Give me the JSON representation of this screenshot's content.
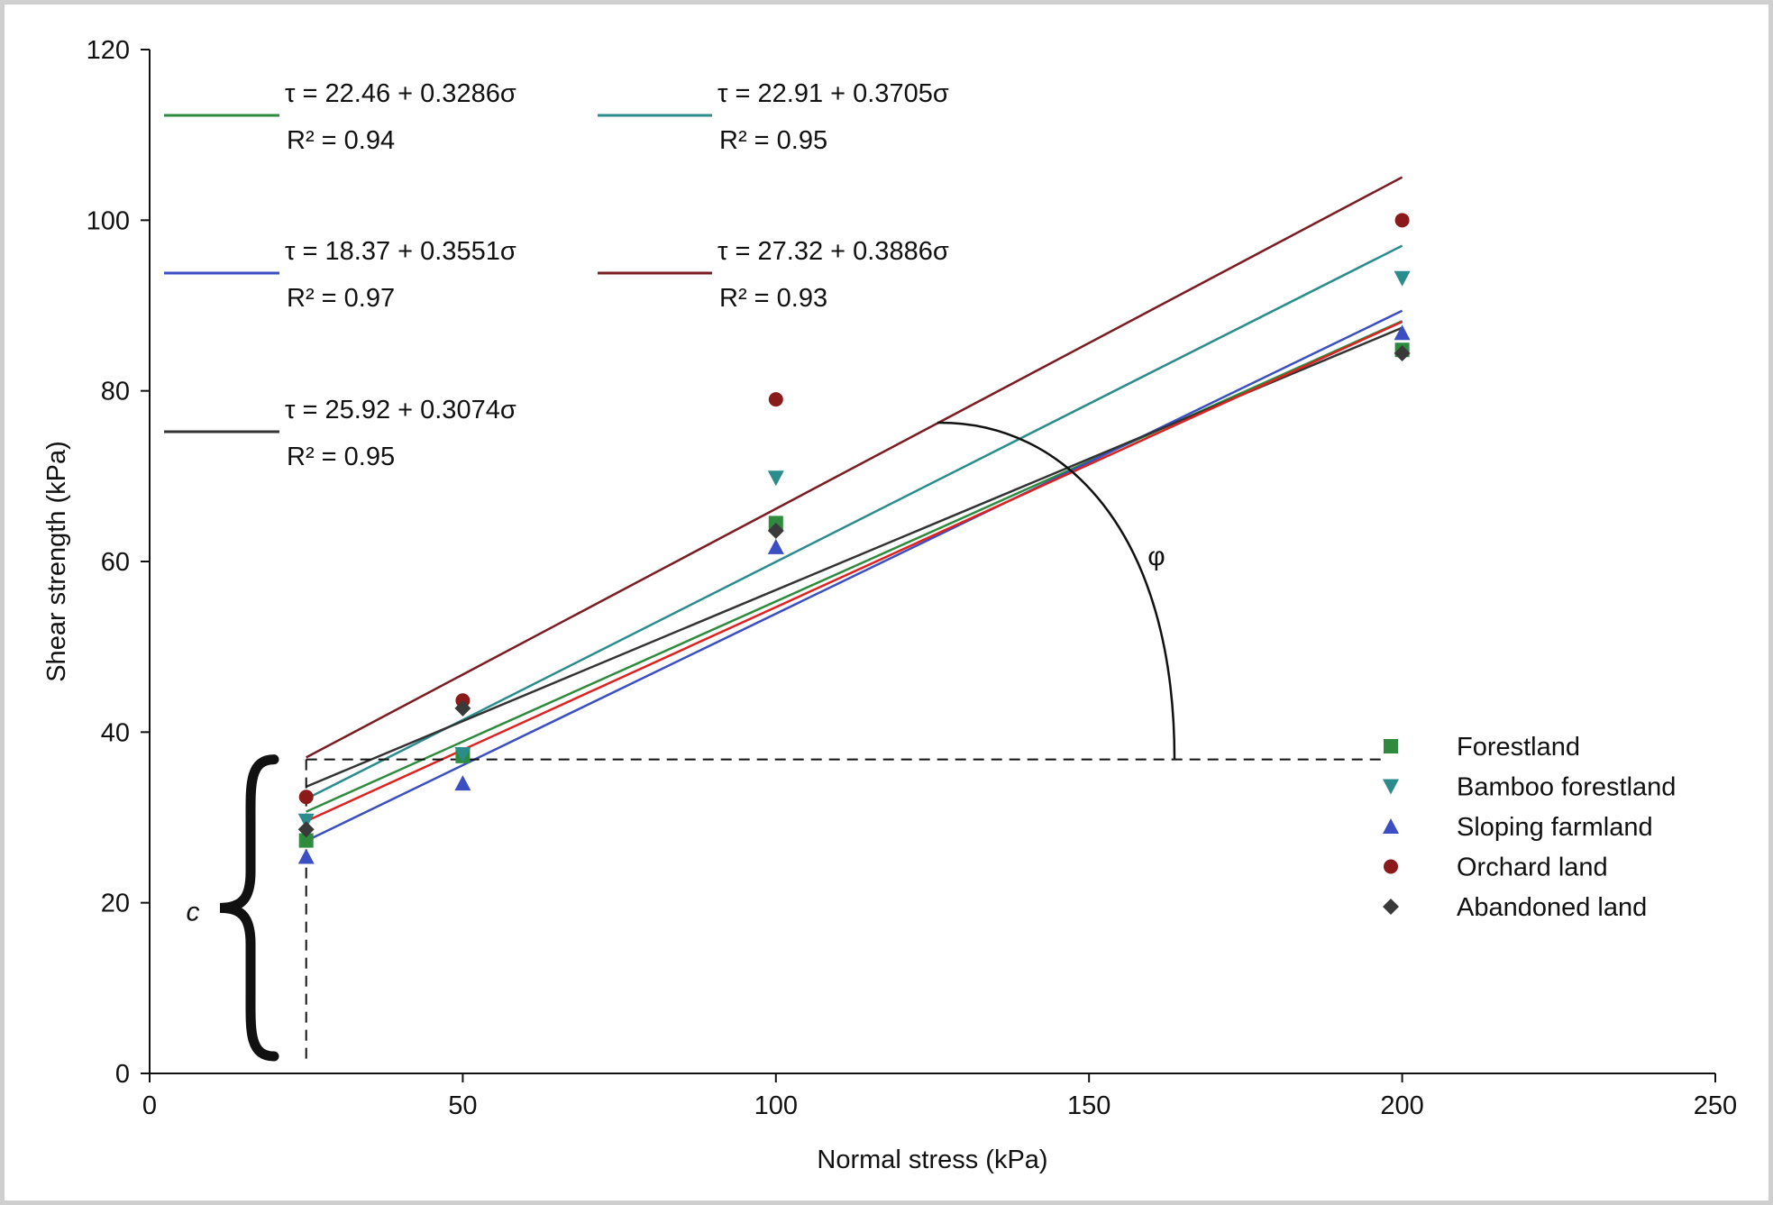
{
  "chart_data": {
    "type": "scatter",
    "xlabel": "Normal stress (kPa)",
    "ylabel": "Shear strength (kPa)",
    "xlim": [
      0,
      250
    ],
    "ylim": [
      0,
      120
    ],
    "xticks": [
      "0",
      "50",
      "100",
      "150",
      "200",
      "250"
    ],
    "yticks": [
      "0",
      "20",
      "40",
      "60",
      "80",
      "100",
      "120"
    ],
    "grid": false,
    "legend_position": "right",
    "series": [
      {
        "name": "Forestland",
        "marker": "square",
        "color": "#2e8b3e",
        "x": [
          25,
          50,
          100,
          200
        ],
        "y": [
          27.3,
          37.2,
          64.5,
          84.8
        ],
        "fit": {
          "equation": "τ = 22.46 + 0.3286σ",
          "r2": "R² = 0.94",
          "intercept": 22.46,
          "slope": 0.3286,
          "color": "#2e8b3e"
        }
      },
      {
        "name": "Bamboo forestland",
        "marker": "triangle-down",
        "color": "#2a8c8c",
        "x": [
          25,
          50,
          100,
          200
        ],
        "y": [
          29.6,
          37.4,
          69.8,
          93.2
        ],
        "fit": {
          "equation": "τ = 22.91 + 0.3705σ",
          "r2": "R² = 0.95",
          "intercept": 22.91,
          "slope": 0.3705,
          "color": "#2a8c8c"
        }
      },
      {
        "name": "Sloping farmland",
        "marker": "triangle-up",
        "color": "#3b4ec2",
        "x": [
          25,
          50,
          100,
          200
        ],
        "y": [
          25.4,
          34.0,
          61.7,
          86.8
        ],
        "fit": {
          "equation": "τ = 18.37 + 0.3551σ",
          "r2": "R² = 0.97",
          "intercept": 18.37,
          "slope": 0.3551,
          "color": "#3b4ec2"
        }
      },
      {
        "name": "Orchard land",
        "marker": "circle",
        "color": "#8b1a1a",
        "x": [
          25,
          50,
          100,
          200
        ],
        "y": [
          32.4,
          43.7,
          79.0,
          100.0
        ],
        "fit": {
          "equation": "τ = 27.32 + 0.3886σ",
          "r2": "R² = 0.93",
          "intercept": 27.32,
          "slope": 0.3886,
          "color": "#7a1c22"
        }
      },
      {
        "name": "Abandoned land",
        "marker": "diamond",
        "color": "#3a3a3a",
        "x": [
          25,
          50,
          100,
          200
        ],
        "y": [
          28.6,
          42.8,
          63.6,
          84.4
        ],
        "fit": {
          "equation": "τ = 25.92 + 0.3074σ",
          "r2": "R² = 0.95",
          "intercept": 25.92,
          "slope": 0.3074,
          "color": "#333333"
        }
      }
    ],
    "extra_line": {
      "color": "#dd2222",
      "intercept": 21.2,
      "slope": 0.3345
    },
    "annotations": {
      "cohesion_label": "c",
      "angle_label": "φ",
      "reference_y": 36.8,
      "reference_x": 25
    }
  }
}
